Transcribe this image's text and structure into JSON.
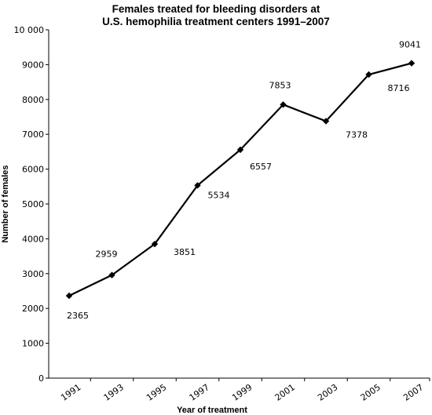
{
  "chart_data": {
    "type": "line",
    "title_lines": [
      "Females treated for bleeding disorders at",
      "U.S. hemophilia treatment centers 1991–2007"
    ],
    "xlabel": "Year of treatment",
    "ylabel": "Number of females",
    "x": [
      "1991",
      "1993",
      "1995",
      "1997",
      "1999",
      "2001",
      "2003",
      "2005",
      "2007"
    ],
    "values": [
      2365,
      2959,
      3851,
      5534,
      6557,
      7853,
      7378,
      8716,
      9041
    ],
    "data_labels": [
      "2365",
      "2959",
      "3851",
      "5534",
      "6557",
      "7853",
      "7378",
      "8716",
      "9041"
    ],
    "ylim": [
      0,
      10000
    ],
    "yticks": [
      0,
      1000,
      2000,
      3000,
      4000,
      5000,
      6000,
      7000,
      8000,
      9000,
      10000
    ],
    "ytick_labels": [
      "0",
      "1000",
      "2000",
      "3000",
      "4000",
      "5000",
      "6000",
      "7000",
      "8000",
      "9000",
      "10 000"
    ],
    "grid": false,
    "marker": "diamond",
    "line_color": "#000000"
  }
}
